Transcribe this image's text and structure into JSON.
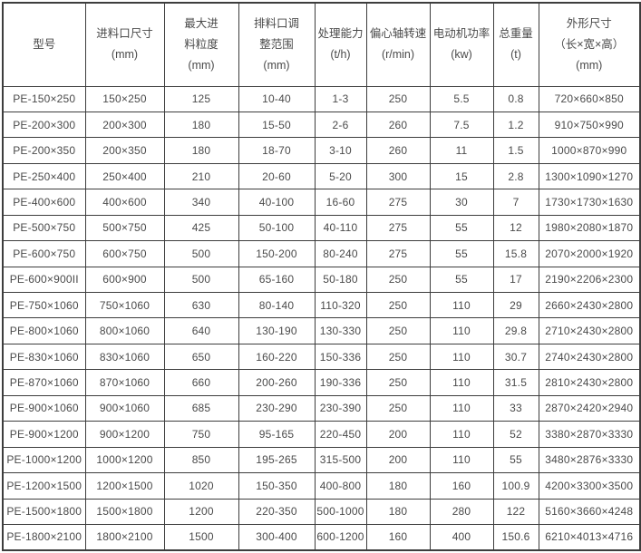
{
  "colors": {
    "border": "#3d3d3d",
    "text": "#4a4a4a",
    "background": "#ffffff"
  },
  "chart_data": {
    "type": "table",
    "columns": [
      "型号",
      "进料口尺寸\n(mm)",
      "最大进\n料粒度\n(mm)",
      "排料口调\n整范围\n(mm)",
      "处理能力\n(t/h)",
      "偏心轴转速\n(r/min)",
      "电动机功率\n(kw)",
      "总重量\n(t)",
      "外形尺寸\n（长×宽×高）\n(mm)"
    ],
    "rows": [
      [
        "PE-150×250",
        "150×250",
        "125",
        "10-40",
        "1-3",
        "250",
        "5.5",
        "0.8",
        "720×660×850"
      ],
      [
        "PE-200×300",
        "200×300",
        "180",
        "15-50",
        "2-6",
        "260",
        "7.5",
        "1.2",
        "910×750×990"
      ],
      [
        "PE-200×350",
        "200×350",
        "180",
        "18-70",
        "3-10",
        "260",
        "11",
        "1.5",
        "1000×870×990"
      ],
      [
        "PE-250×400",
        "250×400",
        "210",
        "20-60",
        "5-20",
        "300",
        "15",
        "2.8",
        "1300×1090×1270"
      ],
      [
        "PE-400×600",
        "400×600",
        "340",
        "40-100",
        "16-60",
        "275",
        "30",
        "7",
        "1730×1730×1630"
      ],
      [
        "PE-500×750",
        "500×750",
        "425",
        "50-100",
        "40-110",
        "275",
        "55",
        "12",
        "1980×2080×1870"
      ],
      [
        "PE-600×750",
        "600×750",
        "500",
        "150-200",
        "80-240",
        "275",
        "55",
        "15.8",
        "2070×2000×1920"
      ],
      [
        "PE-600×900II",
        "600×900",
        "500",
        "65-160",
        "50-180",
        "250",
        "55",
        "17",
        "2190×2206×2300"
      ],
      [
        "PE-750×1060",
        "750×1060",
        "630",
        "80-140",
        "110-320",
        "250",
        "110",
        "29",
        "2660×2430×2800"
      ],
      [
        "PE-800×1060",
        "800×1060",
        "640",
        "130-190",
        "130-330",
        "250",
        "110",
        "29.8",
        "2710×2430×2800"
      ],
      [
        "PE-830×1060",
        "830×1060",
        "650",
        "160-220",
        "150-336",
        "250",
        "110",
        "30.7",
        "2740×2430×2800"
      ],
      [
        "PE-870×1060",
        "870×1060",
        "660",
        "200-260",
        "190-336",
        "250",
        "110",
        "31.5",
        "2810×2430×2800"
      ],
      [
        "PE-900×1060",
        "900×1060",
        "685",
        "230-290",
        "230-390",
        "250",
        "110",
        "33",
        "2870×2420×2940"
      ],
      [
        "PE-900×1200",
        "900×1200",
        "750",
        "95-165",
        "220-450",
        "200",
        "110",
        "52",
        "3380×2870×3330"
      ],
      [
        "PE-1000×1200",
        "1000×1200",
        "850",
        "195-265",
        "315-500",
        "200",
        "110",
        "55",
        "3480×2876×3330"
      ],
      [
        "PE-1200×1500",
        "1200×1500",
        "1020",
        "150-350",
        "400-800",
        "180",
        "160",
        "100.9",
        "4200×3300×3500"
      ],
      [
        "PE-1500×1800",
        "1500×1800",
        "1200",
        "220-350",
        "500-1000",
        "180",
        "280",
        "122",
        "5160×3660×4248"
      ],
      [
        "PE-1800×2100",
        "1800×2100",
        "1500",
        "300-400",
        "600-1200",
        "160",
        "400",
        "150.6",
        "6210×4013×4716"
      ]
    ]
  }
}
